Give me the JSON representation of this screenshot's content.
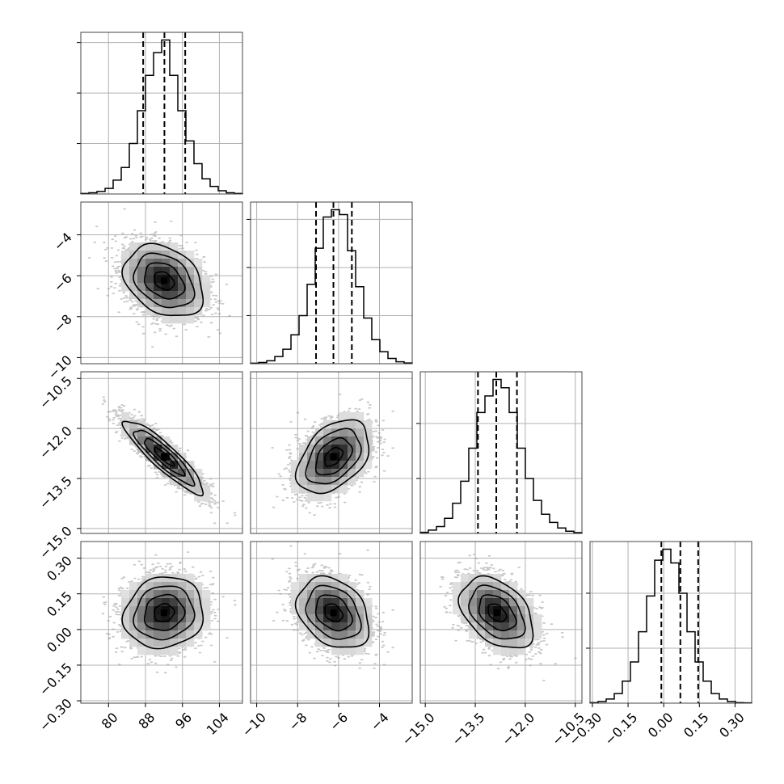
{
  "chart_data": {
    "type": "corner",
    "colors": {
      "line": "#000000",
      "grid": "#b0b0b0",
      "frame": "#444444",
      "scatter": "#9a9a9a",
      "density_dark": "#000000",
      "background": "#ffffff"
    },
    "grid": true,
    "parameters": [
      {
        "range": [
          74,
          109
        ],
        "ticks": [
          80,
          88,
          96,
          104
        ],
        "tick_labels": [
          "80",
          "88",
          "96",
          "104"
        ],
        "mean": 92,
        "sd": 4.3,
        "quantiles": [
          87.5,
          92.1,
          96.6
        ],
        "hist_bins": 20,
        "hist_counts": [
          2,
          5,
          10,
          22,
          55,
          105,
          200,
          330,
          470,
          560,
          610,
          470,
          330,
          210,
          120,
          60,
          30,
          13,
          5,
          2
        ]
      },
      {
        "range": [
          -10.3,
          -2.4
        ],
        "ticks": [
          -10,
          -8,
          -6,
          -4
        ],
        "tick_labels": [
          "−10",
          "−8",
          "−6",
          "−4"
        ],
        "mean": -6.25,
        "sd": 0.88,
        "quantiles": [
          -7.1,
          -6.25,
          -5.35
        ],
        "hist_bins": 20,
        "hist_counts": [
          2,
          5,
          12,
          30,
          60,
          120,
          200,
          330,
          480,
          610,
          640,
          620,
          470,
          320,
          190,
          100,
          50,
          22,
          8,
          3
        ]
      },
      {
        "range": [
          -15.15,
          -10.3
        ],
        "ticks": [
          -15.0,
          -13.5,
          -12.0,
          -10.5
        ],
        "tick_labels": [
          "−15.0",
          "−13.5",
          "−12.0",
          "−10.5"
        ],
        "mean": -12.85,
        "sd": 0.55,
        "quantiles": [
          -13.42,
          -12.87,
          -12.25
        ],
        "hist_bins": 20,
        "hist_counts": [
          4,
          12,
          25,
          55,
          110,
          190,
          310,
          440,
          500,
          560,
          530,
          440,
          310,
          200,
          120,
          70,
          40,
          20,
          8,
          3
        ]
      },
      {
        "range": [
          -0.31,
          0.37
        ],
        "ticks": [
          -0.3,
          -0.15,
          0.0,
          0.15,
          0.3
        ],
        "tick_labels": [
          "−0.30",
          "−0.15",
          "0.00",
          "0.15",
          "0.30"
        ],
        "mean": 0.07,
        "sd": 0.075,
        "quantiles": [
          -0.01,
          0.07,
          0.145
        ],
        "hist_bins": 20,
        "hist_counts": [
          2,
          6,
          15,
          35,
          80,
          150,
          260,
          390,
          520,
          560,
          510,
          400,
          260,
          150,
          80,
          35,
          15,
          6,
          2,
          1
        ]
      }
    ],
    "correlations": {
      "1-0": -0.3,
      "2-0": -0.9,
      "2-1": 0.42,
      "3-0": 0.1,
      "3-1": -0.3,
      "3-2": -0.4
    },
    "samples_per_panel": 2600,
    "contour_levels": [
      0.5,
      1.0,
      1.5,
      2.0
    ]
  }
}
